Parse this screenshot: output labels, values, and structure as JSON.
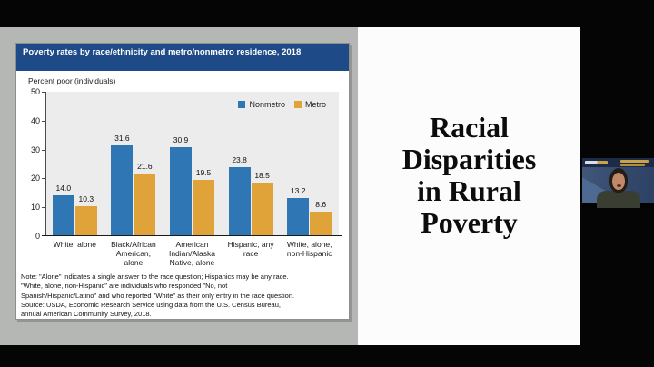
{
  "slide": {
    "title_lines": [
      "Racial",
      "Disparities",
      "in Rural",
      "Poverty"
    ]
  },
  "chart": {
    "header": "Poverty rates by race/ethnicity and metro/nonmetro residence, 2018",
    "axis_label": "Percent poor (individuals)",
    "note_lines": [
      "Note: \"Alone\" indicates a single answer to the race question; Hispanics may be any race.",
      "\"White, alone, non-Hispanic\" are individuals who responded \"No, not",
      "Spanish/Hispanic/Latino\" and who reported \"White\" as their only entry in the race question.",
      "Source: USDA, Economic Research Service using data from the U.S. Census Bureau,",
      "annual American Community Survey, 2018."
    ]
  },
  "chart_data": {
    "type": "bar",
    "title": "Poverty rates by race/ethnicity and metro/nonmetro residence, 2018",
    "xlabel": "",
    "ylabel": "Percent poor (individuals)",
    "ylim": [
      0,
      50
    ],
    "yticks": [
      0,
      10,
      20,
      30,
      40,
      50
    ],
    "grid": false,
    "legend_position": "top-right",
    "categories": [
      "White, alone",
      "Black/African American, alone",
      "American Indian/Alaska Native, alone",
      "Hispanic, any race",
      "White, alone, non-Hispanic"
    ],
    "category_label_lines": [
      [
        "White, alone"
      ],
      [
        "Black/African",
        "American,",
        "alone"
      ],
      [
        "American",
        "Indian/Alaska",
        "Native, alone"
      ],
      [
        "Hispanic, any",
        "race"
      ],
      [
        "White, alone,",
        "non-Hispanic"
      ]
    ],
    "series": [
      {
        "name": "Nonmetro",
        "color": "#2e76b4",
        "values": [
          14.0,
          31.6,
          30.9,
          23.8,
          13.2
        ]
      },
      {
        "name": "Metro",
        "color": "#dfa339",
        "values": [
          10.3,
          21.6,
          19.5,
          18.5,
          8.6
        ]
      }
    ]
  },
  "colors": {
    "banner_blue": "#1e4a87",
    "nonmetro_blue": "#2e76b4",
    "metro_gold": "#dfa339",
    "plot_background": "#ececec",
    "slide_gray": "#b4b7b3"
  }
}
